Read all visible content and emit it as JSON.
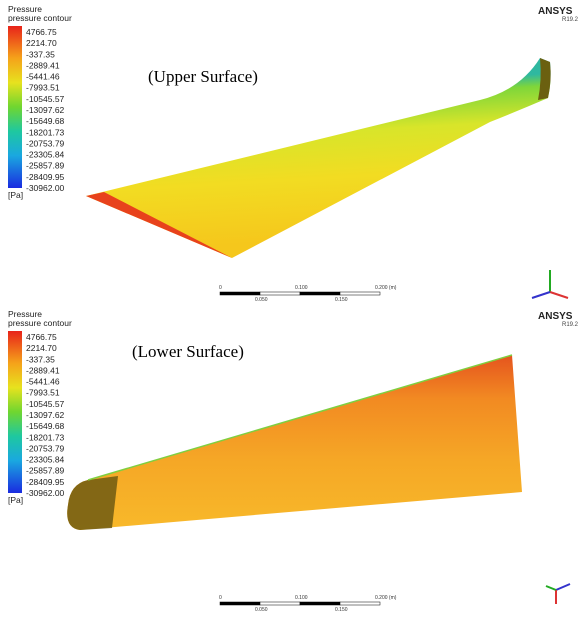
{
  "panels": [
    {
      "legend": {
        "title": "Pressure",
        "subtitle": "pressure contour",
        "levels": [
          "4766.75",
          "2214.70",
          "-337.35",
          "-2889.41",
          "-5441.46",
          "-7993.51",
          "-10545.57",
          "-13097.62",
          "-15649.68",
          "-18201.73",
          "-20753.79",
          "-23305.84",
          "-25857.89",
          "-28409.95",
          "-30962.00"
        ],
        "unit": "[Pa]"
      },
      "label": "(Upper Surface)",
      "brand": "ANSYS",
      "version": "R19.2",
      "scale": {
        "top": [
          "0",
          "0.100",
          "0.200 (m)"
        ],
        "bottom": [
          "0.050",
          "0.150"
        ]
      }
    },
    {
      "legend": {
        "title": "Pressure",
        "subtitle": "pressure contour",
        "levels": [
          "4766.75",
          "2214.70",
          "-337.35",
          "-2889.41",
          "-5441.46",
          "-7993.51",
          "-10545.57",
          "-13097.62",
          "-15649.68",
          "-18201.73",
          "-20753.79",
          "-23305.84",
          "-25857.89",
          "-28409.95",
          "-30962.00"
        ],
        "unit": "[Pa]"
      },
      "label": "(Lower Surface)",
      "brand": "ANSYS",
      "version": "R19.2",
      "scale": {
        "top": [
          "0",
          "0.100",
          "0.200 (m)"
        ],
        "bottom": [
          "0.050",
          "0.150"
        ]
      }
    }
  ]
}
